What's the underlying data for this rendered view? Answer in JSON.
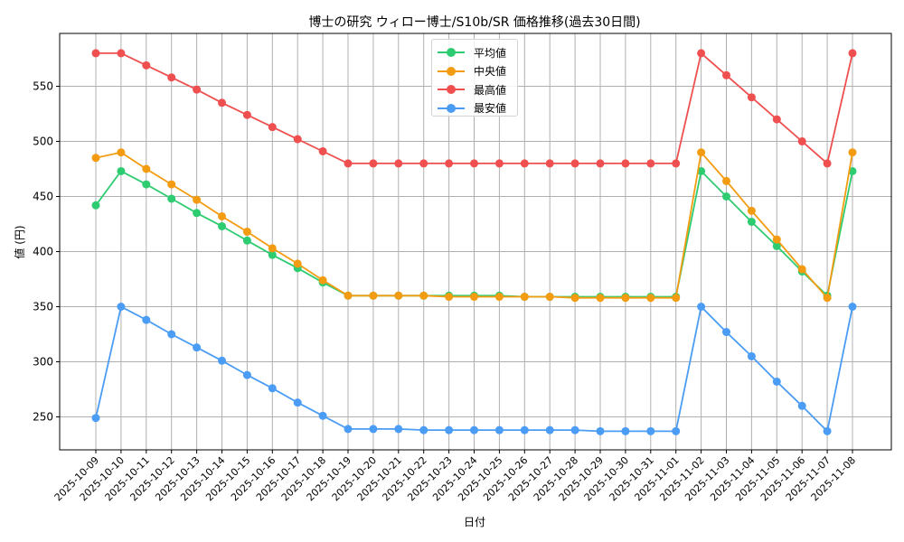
{
  "chart_data": {
    "type": "line",
    "title": "博士の研究 ウィロー博士/S10b/SR 価格推移(過去30日間)",
    "xlabel": "日付",
    "ylabel": "値 (円)",
    "ylim": [
      220,
      592
    ],
    "yticks": [
      250,
      300,
      350,
      400,
      450,
      500,
      550
    ],
    "grid": true,
    "legend_position": "upper center",
    "categories": [
      "2025-10-09",
      "2025-10-10",
      "2025-10-11",
      "2025-10-12",
      "2025-10-13",
      "2025-10-14",
      "2025-10-15",
      "2025-10-16",
      "2025-10-17",
      "2025-10-18",
      "2025-10-19",
      "2025-10-20",
      "2025-10-21",
      "2025-10-22",
      "2025-10-23",
      "2025-10-24",
      "2025-10-25",
      "2025-10-26",
      "2025-10-27",
      "2025-10-28",
      "2025-10-29",
      "2025-10-30",
      "2025-10-31",
      "2025-11-01",
      "2025-11-02",
      "2025-11-03",
      "2025-11-04",
      "2025-11-05",
      "2025-11-06",
      "2025-11-07",
      "2025-11-08"
    ],
    "series": [
      {
        "name": "平均値",
        "color": "#2ecc71",
        "values": [
          442,
          473,
          461,
          448,
          435,
          423,
          410,
          397,
          385,
          372,
          360,
          360,
          360,
          360,
          360,
          360,
          360,
          359,
          359,
          359,
          359,
          359,
          359,
          359,
          473,
          450,
          427,
          405,
          382,
          360,
          473
        ]
      },
      {
        "name": "中央値",
        "color": "#f39c12",
        "values": [
          485,
          490,
          475,
          461,
          447,
          432,
          418,
          403,
          389,
          374,
          360,
          360,
          360,
          360,
          359,
          359,
          359,
          359,
          359,
          358,
          358,
          358,
          358,
          358,
          490,
          464,
          437,
          411,
          384,
          358,
          490
        ]
      },
      {
        "name": "最高値",
        "color": "#ef4f4f",
        "values": [
          580,
          580,
          569,
          558,
          547,
          535,
          524,
          513,
          502,
          491,
          480,
          480,
          480,
          480,
          480,
          480,
          480,
          480,
          480,
          480,
          480,
          480,
          480,
          480,
          580,
          560,
          540,
          520,
          500,
          480,
          580
        ]
      },
      {
        "name": "最安値",
        "color": "#4b9cf5",
        "values": [
          249,
          350,
          338,
          325,
          313,
          301,
          288,
          276,
          263,
          251,
          239,
          239,
          239,
          238,
          238,
          238,
          238,
          238,
          238,
          238,
          237,
          237,
          237,
          237,
          350,
          327,
          305,
          282,
          260,
          237,
          350
        ]
      }
    ]
  },
  "legend": {
    "items": [
      {
        "label": "平均値",
        "color": "#2ecc71"
      },
      {
        "label": "中央値",
        "color": "#f39c12"
      },
      {
        "label": "最高値",
        "color": "#ef4f4f"
      },
      {
        "label": "最安値",
        "color": "#4b9cf5"
      }
    ]
  }
}
